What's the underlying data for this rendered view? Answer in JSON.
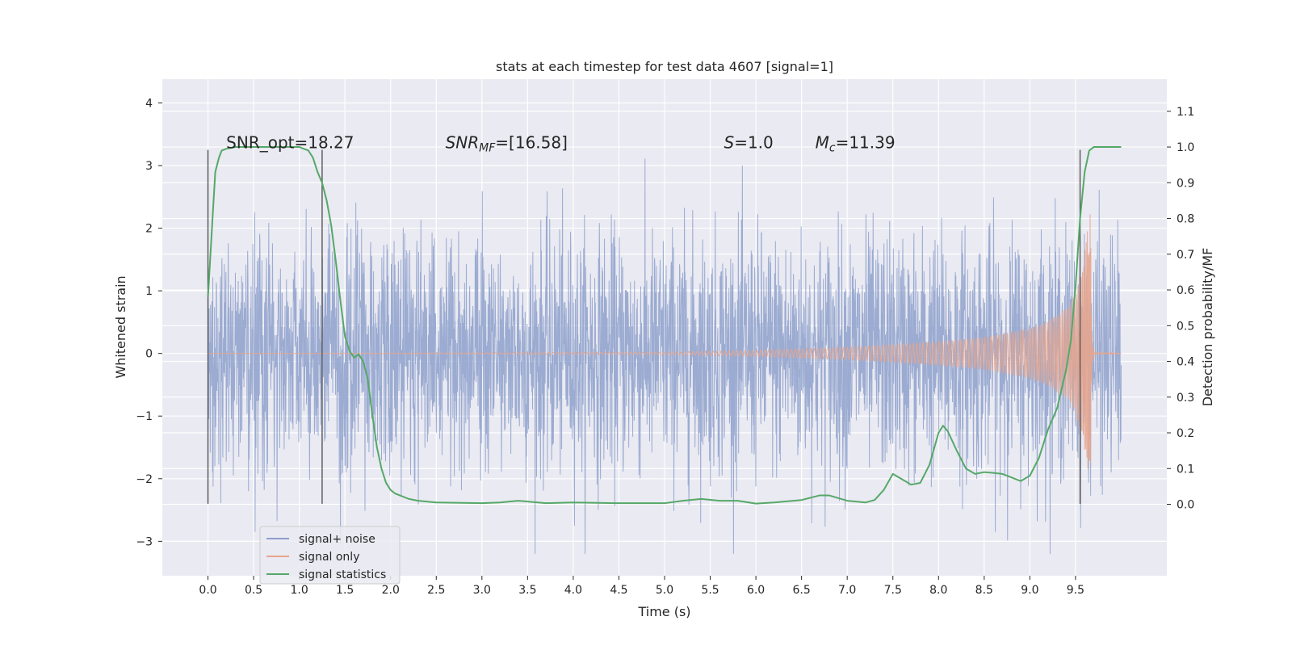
{
  "chart_data": {
    "type": "line",
    "title": "stats at each timestep for test data 4607 [signal=1]",
    "xlabel": "Time (s)",
    "ylabel": "Whitened strain",
    "y2label": "Detection probability/MF",
    "xlim": [
      -0.5,
      10.5
    ],
    "ylim": [
      -3.55,
      4.38
    ],
    "y2lim": [
      -0.2,
      1.19
    ],
    "xticks": [
      0.0,
      0.5,
      1.0,
      1.5,
      2.0,
      2.5,
      3.0,
      3.5,
      4.0,
      4.5,
      5.0,
      5.5,
      6.0,
      6.5,
      7.0,
      7.5,
      8.0,
      8.5,
      9.0,
      9.5
    ],
    "xtick_labels": [
      "0.0",
      "0.5",
      "1.0",
      "1.5",
      "2.0",
      "2.5",
      "3.0",
      "3.5",
      "4.0",
      "4.5",
      "5.0",
      "5.5",
      "6.0",
      "6.5",
      "7.0",
      "7.5",
      "8.0",
      "8.5",
      "9.0",
      "9.5"
    ],
    "yticks": [
      -3,
      -2,
      -1,
      0,
      1,
      2,
      3,
      4
    ],
    "ytick_labels": [
      "−3",
      "−2",
      "−1",
      "0",
      "1",
      "2",
      "3",
      "4"
    ],
    "y2ticks": [
      0.0,
      0.1,
      0.2,
      0.3,
      0.4,
      0.5,
      0.6,
      0.7,
      0.8,
      0.9,
      1.0,
      1.1
    ],
    "y2tick_labels": [
      "0.0",
      "0.1",
      "0.2",
      "0.3",
      "0.4",
      "0.5",
      "0.6",
      "0.7",
      "0.8",
      "0.9",
      "1.0",
      "1.1"
    ],
    "grid": true,
    "legend": {
      "placement": "lower-left",
      "entries": [
        {
          "label": "signal+ noise",
          "color": "#8da0cb"
        },
        {
          "label": "signal only",
          "color": "#e6a58e"
        },
        {
          "label": "signal statistics",
          "color": "#55a868"
        }
      ]
    },
    "annotations": [
      {
        "text": "SNR_opt=18.27",
        "x": 0.2,
        "y": 3.25
      },
      {
        "var": "SNR",
        "sub": "MF",
        "value": "=[16.58]",
        "x": 2.6,
        "y": 3.25
      },
      {
        "var": "S",
        "value": "=1.0",
        "x": 5.65,
        "y": 3.25
      },
      {
        "var": "M",
        "sub": "c",
        "value": "=11.39",
        "x": 6.65,
        "y": 3.25
      }
    ],
    "vertical_lines": [
      {
        "x": 0.0,
        "y_from": -2.4,
        "y_to": 3.25
      },
      {
        "x": 1.25,
        "y_from": -2.4,
        "y_to": 3.25
      },
      {
        "x": 9.55,
        "y_from": -2.4,
        "y_to": 3.25
      }
    ],
    "series": [
      {
        "name": "signal+ noise",
        "color": "#8da0cb",
        "kind": "noise",
        "t_start": 0.0,
        "t_end": 10.0,
        "noise_sigma": 0.95,
        "clip_min": -3.2,
        "clip_max": 4.05
      },
      {
        "name": "signal only",
        "color": "#e6a58e",
        "kind": "chirp",
        "t_start": 0.0,
        "t_end": 10.0,
        "t_merger": 9.68,
        "envelope": {
          "t": [
            0.0,
            5.0,
            6.0,
            7.0,
            7.5,
            8.0,
            8.5,
            9.0,
            9.2,
            9.4,
            9.5,
            9.6,
            9.66,
            9.7,
            10.0
          ],
          "amp": [
            0.0,
            0.02,
            0.05,
            0.1,
            0.14,
            0.19,
            0.26,
            0.4,
            0.52,
            0.72,
            0.95,
            1.6,
            2.3,
            0.02,
            0.0
          ]
        }
      },
      {
        "name": "signal statistics",
        "color": "#55a868",
        "kind": "line",
        "axis": "right",
        "x": [
          0.0,
          0.05,
          0.08,
          0.12,
          0.15,
          0.2,
          0.3,
          0.5,
          0.8,
          1.0,
          1.1,
          1.15,
          1.2,
          1.25,
          1.3,
          1.35,
          1.4,
          1.45,
          1.5,
          1.55,
          1.6,
          1.65,
          1.7,
          1.75,
          1.8,
          1.85,
          1.9,
          1.95,
          2.0,
          2.05,
          2.1,
          2.2,
          2.3,
          2.5,
          3.0,
          3.2,
          3.4,
          3.7,
          4.0,
          4.5,
          5.0,
          5.2,
          5.4,
          5.6,
          5.8,
          6.0,
          6.2,
          6.5,
          6.7,
          6.8,
          7.0,
          7.2,
          7.3,
          7.4,
          7.5,
          7.6,
          7.7,
          7.8,
          7.9,
          8.0,
          8.05,
          8.1,
          8.2,
          8.3,
          8.4,
          8.5,
          8.6,
          8.7,
          8.8,
          8.9,
          9.0,
          9.1,
          9.2,
          9.3,
          9.4,
          9.45,
          9.5,
          9.55,
          9.6,
          9.65,
          9.7,
          9.8,
          9.9,
          10.0
        ],
        "y": [
          0.58,
          0.8,
          0.93,
          0.97,
          0.99,
          0.995,
          1.0,
          1.0,
          1.0,
          1.0,
          0.99,
          0.97,
          0.93,
          0.9,
          0.85,
          0.78,
          0.68,
          0.57,
          0.47,
          0.43,
          0.41,
          0.42,
          0.4,
          0.35,
          0.25,
          0.16,
          0.1,
          0.06,
          0.04,
          0.03,
          0.025,
          0.015,
          0.01,
          0.005,
          0.003,
          0.005,
          0.01,
          0.003,
          0.005,
          0.003,
          0.003,
          0.01,
          0.015,
          0.01,
          0.01,
          0.002,
          0.005,
          0.012,
          0.025,
          0.025,
          0.01,
          0.005,
          0.012,
          0.04,
          0.085,
          0.07,
          0.055,
          0.06,
          0.11,
          0.2,
          0.22,
          0.205,
          0.15,
          0.1,
          0.085,
          0.09,
          0.088,
          0.085,
          0.075,
          0.065,
          0.08,
          0.13,
          0.21,
          0.27,
          0.38,
          0.46,
          0.61,
          0.8,
          0.93,
          0.99,
          1.0,
          1.0,
          1.0,
          1.0
        ]
      }
    ]
  }
}
